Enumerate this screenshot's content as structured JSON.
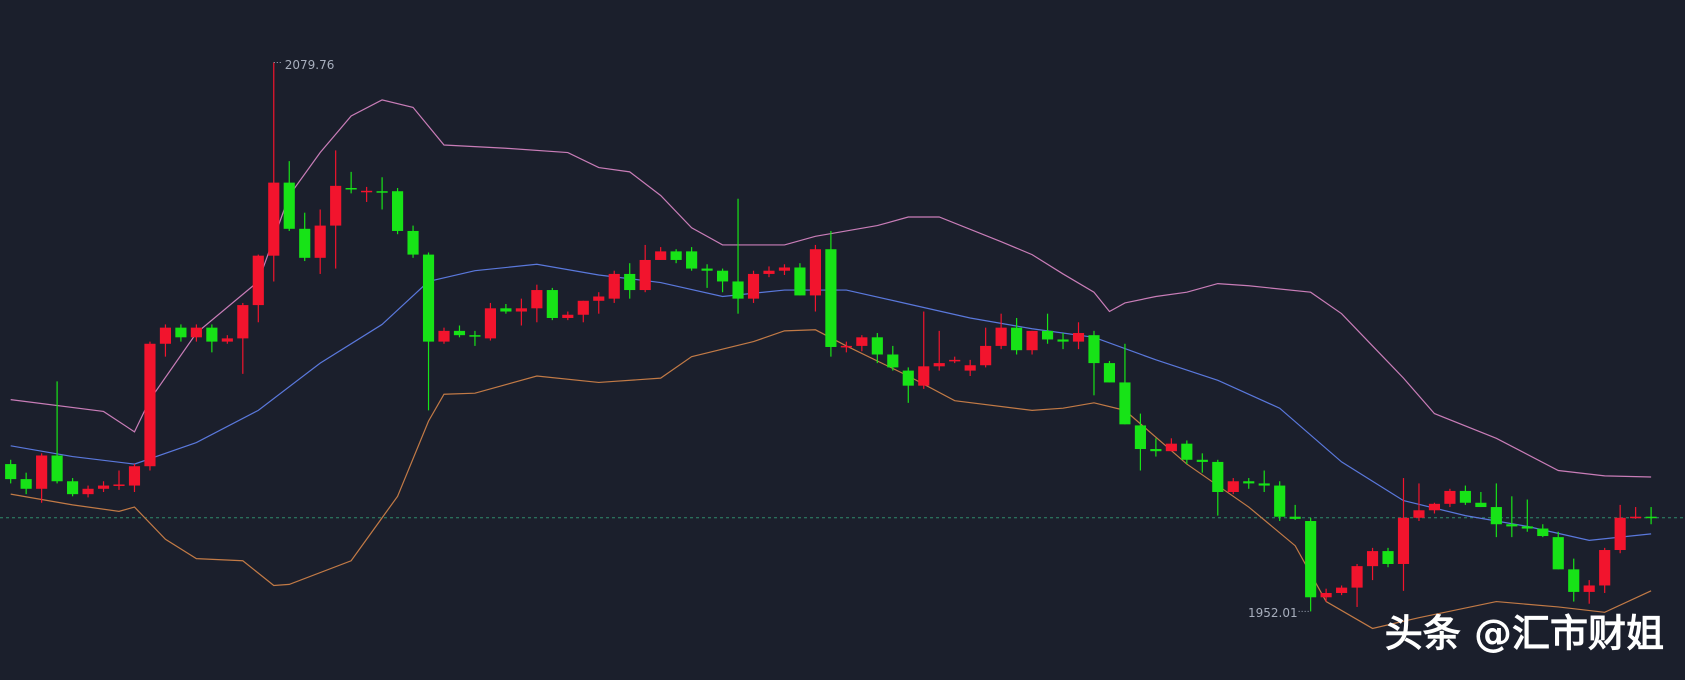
{
  "chart_data": {
    "type": "candlestick",
    "up_color": "#f2142d",
    "down_color": "#17e317",
    "background": "#1b1f2c",
    "xlim": [
      -0.69,
      108.19
    ],
    "ylim": [
      1936.05,
      2094.3
    ],
    "open": [
      1986.3,
      1982.8,
      1980.55,
      1988.3,
      1982.3,
      1979.3,
      1980.55,
      1981.3,
      1981.3,
      1985.8,
      2014.3,
      2018.05,
      2015.8,
      2018.05,
      2014.8,
      2015.55,
      2023.3,
      2034.8,
      2051.8,
      2041.05,
      2034.3,
      2041.8,
      2050.55,
      2049.8,
      2049.8,
      2049.8,
      2040.55,
      2035.05,
      2014.8,
      2017.3,
      2016.3,
      2015.55,
      2022.55,
      2021.8,
      2022.55,
      2026.8,
      2020.3,
      2021.05,
      2024.3,
      2024.8,
      2030.55,
      2026.8,
      2033.8,
      2035.8,
      2035.8,
      2031.8,
      2031.3,
      2028.8,
      2024.8,
      2030.55,
      2031.3,
      2032.05,
      2025.55,
      2036.3,
      2013.55,
      2013.8,
      2015.8,
      2011.8,
      2008.05,
      2004.55,
      2009.05,
      2010.3,
      2008.05,
      2009.3,
      2013.8,
      2018.05,
      2012.8,
      2017.3,
      2015.3,
      2014.8,
      2016.3,
      2009.8,
      2005.3,
      1995.3,
      1989.8,
      1989.3,
      1991.05,
      1987.3,
      1986.8,
      1979.8,
      1982.3,
      1981.8,
      1981.3,
      1974.05,
      1973.05,
      1955.3,
      1956.3,
      1957.55,
      1962.55,
      1966.05,
      1963.05,
      1973.8,
      1975.55,
      1977.05,
      1980.05,
      1977.3,
      1976.3,
      1972.3,
      1971.8,
      1971.3,
      1969.3,
      1961.8,
      1956.55,
      1958.05,
      1966.3,
      1973.8,
      1974.05
    ],
    "high": [
      1987.3,
      1984.3,
      1988.8,
      2005.55,
      1983.05,
      1981.3,
      1982.3,
      1984.8,
      1986.3,
      2014.8,
      2018.8,
      2018.8,
      2018.8,
      2018.8,
      2016.3,
      2023.8,
      2035.05,
      2079.76,
      2056.8,
      2044.8,
      2045.55,
      2059.3,
      2054.3,
      2050.8,
      2053.05,
      2050.55,
      2041.8,
      2035.55,
      2018.05,
      2018.55,
      2017.3,
      2023.8,
      2023.55,
      2024.8,
      2028.05,
      2027.3,
      2021.8,
      2024.3,
      2026.3,
      2031.3,
      2033.05,
      2037.3,
      2036.8,
      2036.3,
      2036.8,
      2032.8,
      2031.8,
      2048.05,
      2031.3,
      2032.3,
      2032.8,
      2033.05,
      2037.3,
      2040.55,
      2014.8,
      2016.3,
      2016.8,
      2013.8,
      2008.8,
      2021.8,
      2017.3,
      2011.3,
      2010.55,
      2018.05,
      2021.3,
      2020.3,
      2017.3,
      2021.3,
      2016.8,
      2019.3,
      2017.3,
      2010.3,
      2014.3,
      1998.05,
      1992.3,
      1992.3,
      1991.8,
      1988.8,
      1987.3,
      1983.05,
      1983.05,
      1984.8,
      1982.3,
      1976.8,
      1973.8,
      1957.3,
      1958.05,
      1963.05,
      1966.8,
      1966.8,
      1983.05,
      1981.8,
      1977.3,
      1980.55,
      1981.3,
      1979.8,
      1981.8,
      1978.8,
      1978.05,
      1972.3,
      1970.55,
      1964.3,
      1959.3,
      1966.8,
      1976.8,
      1976.3,
      1976.3
    ],
    "low": [
      1981.8,
      1979.3,
      1977.3,
      1981.8,
      1978.8,
      1978.55,
      1979.8,
      1980.3,
      1979.8,
      1984.8,
      2011.3,
      2014.8,
      2014.8,
      2012.3,
      2014.3,
      2007.3,
      2019.3,
      2028.8,
      2040.55,
      2033.55,
      2030.55,
      2031.8,
      2049.3,
      2047.3,
      2045.55,
      2039.8,
      2034.3,
      1998.8,
      2014.3,
      2015.8,
      2013.8,
      2015.05,
      2021.3,
      2018.55,
      2019.3,
      2019.8,
      2019.8,
      2019.3,
      2021.3,
      2023.8,
      2024.8,
      2026.3,
      2033.8,
      2033.05,
      2031.3,
      2027.3,
      2026.3,
      2021.3,
      2023.8,
      2029.8,
      2030.3,
      2025.55,
      2021.8,
      2011.3,
      2012.3,
      2012.55,
      2009.8,
      2008.05,
      2000.55,
      2003.8,
      2008.05,
      2009.8,
      2006.8,
      2008.8,
      2013.05,
      2011.8,
      2011.8,
      2014.3,
      2013.05,
      2013.05,
      2002.3,
      2005.3,
      1995.55,
      1984.8,
      1988.05,
      1989.3,
      1986.3,
      1984.3,
      1974.3,
      1979.3,
      1980.55,
      1979.8,
      1973.05,
      1973.3,
      1952.01,
      1954.3,
      1955.8,
      1953.05,
      1959.3,
      1962.3,
      1956.8,
      1973.05,
      1974.8,
      1976.3,
      1976.8,
      1976.3,
      1969.3,
      1969.3,
      1970.55,
      1969.3,
      1961.8,
      1954.3,
      1953.8,
      1956.3,
      1965.55,
      1973.55,
      1972.3
    ],
    "close": [
      1982.8,
      1980.55,
      1988.3,
      1982.3,
      1979.3,
      1980.55,
      1981.3,
      1981.55,
      1985.8,
      2014.3,
      2018.05,
      2015.8,
      2018.05,
      2014.8,
      2015.55,
      2023.3,
      2034.8,
      2051.8,
      2041.05,
      2034.3,
      2041.8,
      2051.05,
      2050.3,
      2049.9,
      2049.55,
      2040.55,
      2035.05,
      2014.8,
      2017.3,
      2016.3,
      2016.05,
      2022.55,
      2021.8,
      2022.55,
      2026.8,
      2020.3,
      2021.05,
      2024.3,
      2025.3,
      2030.55,
      2026.8,
      2033.8,
      2035.8,
      2033.8,
      2031.8,
      2031.3,
      2028.8,
      2024.8,
      2030.55,
      2031.3,
      2032.05,
      2025.55,
      2036.3,
      2013.55,
      2013.8,
      2015.8,
      2011.8,
      2008.8,
      2004.55,
      2009.05,
      2009.8,
      2010.55,
      2009.3,
      2013.8,
      2018.05,
      2012.8,
      2017.3,
      2015.3,
      2014.8,
      2016.8,
      2009.8,
      2005.3,
      1995.55,
      1989.8,
      1989.3,
      1991.05,
      1987.3,
      1986.8,
      1979.8,
      1982.3,
      1981.8,
      1981.3,
      1974.05,
      1973.55,
      1955.3,
      1956.3,
      1957.55,
      1962.55,
      1966.05,
      1963.05,
      1973.8,
      1975.55,
      1977.05,
      1980.05,
      1977.3,
      1976.3,
      1972.3,
      1971.8,
      1971.3,
      1969.55,
      1961.8,
      1956.55,
      1958.05,
      1966.3,
      1973.8,
      1974.05,
      1973.9
    ],
    "bands": [
      {
        "color": "#c97db8",
        "x": [
          0,
          6,
          8,
          9,
          12,
          16,
          18,
          20,
          22,
          24,
          26,
          28,
          32,
          36,
          38,
          40,
          42,
          44,
          46,
          50,
          52,
          56,
          58,
          60,
          64,
          66,
          68,
          70,
          71,
          72,
          74,
          76,
          78,
          80,
          84,
          86,
          88,
          90,
          92,
          96,
          100,
          103,
          106
        ],
        "values": [
          2001.3,
          1998.55,
          1993.8,
          2001.3,
          2016.8,
          2028.8,
          2048.8,
          2058.8,
          2067.3,
          2071.05,
          2069.3,
          2060.55,
          2059.8,
          2058.8,
          2055.3,
          2054.3,
          2048.8,
          2041.3,
          2037.3,
          2037.3,
          2039.3,
          2041.8,
          2043.8,
          2043.8,
          2038.05,
          2035.05,
          2030.55,
          2026.3,
          2021.8,
          2023.8,
          2025.3,
          2026.3,
          2028.3,
          2027.8,
          2026.3,
          2021.3,
          2013.8,
          2006.3,
          1998.05,
          1992.3,
          1984.8,
          1983.55,
          1983.3
        ]
      },
      {
        "color": "#5a78dc",
        "x": [
          0,
          4,
          8,
          12,
          16,
          20,
          24,
          27,
          30,
          34,
          38,
          42,
          46,
          50,
          54,
          58,
          62,
          66,
          70,
          74,
          78,
          82,
          86,
          90,
          94,
          98,
          102,
          106
        ],
        "values": [
          1990.55,
          1988.05,
          1986.3,
          1991.3,
          1998.8,
          2009.8,
          2018.8,
          2028.8,
          2031.3,
          2032.8,
          2030.3,
          2028.55,
          2025.3,
          2026.8,
          2026.8,
          2023.55,
          2020.3,
          2017.8,
          2015.8,
          2010.55,
          2005.8,
          1999.3,
          1986.8,
          1977.8,
          1974.3,
          1971.8,
          1968.55,
          1970.05
        ]
      },
      {
        "color": "#c27a46",
        "x": [
          0,
          4,
          7,
          8,
          10,
          12,
          15,
          17,
          18,
          22,
          25,
          27,
          28,
          30,
          34,
          38,
          42,
          44,
          48,
          50,
          52,
          54,
          58,
          61,
          66,
          68,
          70,
          72,
          76,
          80,
          83,
          85,
          88,
          91,
          96,
          100,
          103,
          106
        ],
        "values": [
          1979.3,
          1976.8,
          1975.3,
          1976.3,
          1968.8,
          1964.3,
          1963.8,
          1958.05,
          1958.3,
          1963.8,
          1978.8,
          1996.3,
          2002.55,
          2002.8,
          2006.8,
          2005.3,
          2006.3,
          2011.3,
          2014.8,
          2017.3,
          2017.55,
          2013.8,
          2006.8,
          2001.05,
          1998.8,
          1999.3,
          2000.55,
          1998.8,
          1986.3,
          1976.3,
          1967.3,
          1954.3,
          1948.05,
          1950.55,
          1954.3,
          1953.05,
          1951.8,
          1956.8
        ]
      }
    ],
    "last_price": 1973.8,
    "last_price_color": "#2f8a6a",
    "watermark": "头条 @汇市财姐"
  }
}
